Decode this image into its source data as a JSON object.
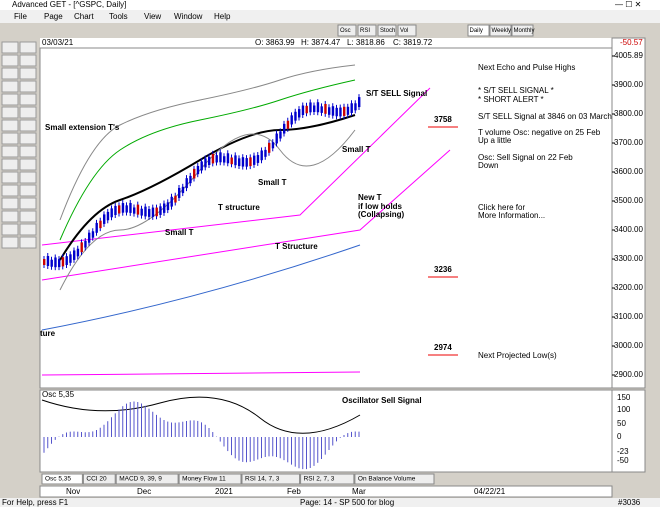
{
  "window": {
    "title": "Advanced GET - [^GSPC, Daily]",
    "menu": [
      "File",
      "Page",
      "Chart",
      "Tools",
      "View",
      "Window",
      "Help"
    ],
    "toolbar": [
      "Osc",
      "RSI",
      "Stoch",
      "Vol"
    ],
    "periods": [
      "Daily",
      "Weekly",
      "Monthly"
    ]
  },
  "chart": {
    "date": "03/03/21",
    "ohlc": [
      "O: 3863.99",
      "H: 3874.47",
      "L: 3818.86",
      "C: 3819.72"
    ],
    "change": "-50.57",
    "price_axis": [
      "4005.89",
      "3900.00",
      "3800.00",
      "3700.00",
      "3600.00",
      "3500.00",
      "3400.00",
      "3300.00",
      "3200.00",
      "3100.00",
      "3000.00",
      "2900.00"
    ],
    "annotations": [
      "Small extension T's",
      "S/T SELL Signal",
      "Small T",
      "Small T",
      "Small T",
      "T structure",
      "T Structure",
      "New T",
      "if low holds",
      "(Collapsing)",
      "ture"
    ],
    "levels": [
      "3758",
      "3236",
      "2974"
    ],
    "notes": [
      "Next Echo and Pulse Highs",
      "* S/T SELL SIGNAL *",
      "* SHORT ALERT *",
      "S/T SELL Signal at 3846 on 03 March",
      "T volume Osc: negative on 25 Feb",
      "Up a little",
      "Osc: Sell Signal on 22 Feb",
      "Down",
      "Click here for",
      "More Information...",
      "Next Projected Low(s)"
    ]
  },
  "oscillator": {
    "label": "Osc 5,35",
    "annotation": "Oscillator Sell Signal",
    "axis": [
      "150",
      "100",
      "50",
      "0",
      "-23",
      "-50"
    ],
    "tabs": [
      "Osc 5,35",
      "CCI 20",
      "MACD 9, 39, 9",
      "Money Flow 11",
      "RSI 14, 7, 3",
      "RSI 2, 7, 3",
      "On Balance Volume"
    ]
  },
  "time_axis": {
    "labels": [
      "Nov",
      "Dec",
      "2021",
      "Feb",
      "Mar"
    ],
    "end_date": "04/22/21"
  },
  "status": {
    "help": "For Help, press F1",
    "page": "Page: 14 - SP 500 for blog",
    "bar": "#3036"
  }
}
